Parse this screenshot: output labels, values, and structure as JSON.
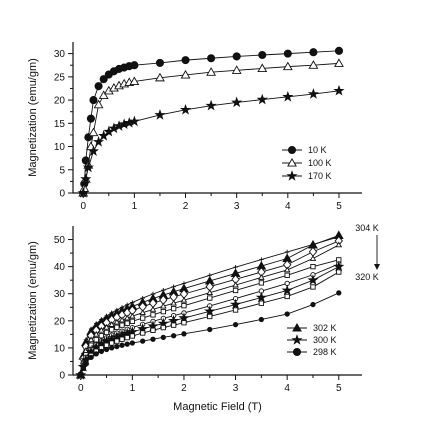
{
  "chart_data": [
    {
      "type": "line",
      "panel": "top",
      "title": "",
      "ylabel": "Magnetization (emu/gm)",
      "xlabel": "",
      "xlim": [
        -0.2,
        5.45
      ],
      "ylim": [
        0,
        32.5
      ],
      "xticks": [
        0,
        1,
        2,
        3,
        4,
        5
      ],
      "yticks": [
        0,
        5,
        10,
        15,
        20,
        25,
        30
      ],
      "legend_position": "bottom-right",
      "series": [
        {
          "name": "10 K",
          "marker": "circle-filled",
          "x": [
            0,
            0.02,
            0.05,
            0.1,
            0.15,
            0.2,
            0.3,
            0.4,
            0.5,
            0.6,
            0.7,
            0.8,
            0.9,
            1.0,
            1.5,
            2.0,
            2.5,
            3.0,
            3.5,
            4.0,
            4.5,
            5.0
          ],
          "y": [
            0,
            2,
            7,
            12,
            16,
            20,
            23,
            24.5,
            25.5,
            26.2,
            26.7,
            27,
            27.3,
            27.5,
            28,
            28.6,
            29,
            29.4,
            29.7,
            30,
            30.3,
            30.6
          ]
        },
        {
          "name": "100 K",
          "marker": "triangle-open",
          "x": [
            0,
            0.02,
            0.05,
            0.1,
            0.15,
            0.2,
            0.3,
            0.4,
            0.5,
            0.6,
            0.7,
            0.8,
            0.9,
            1.0,
            1.5,
            2.0,
            2.5,
            3.0,
            3.5,
            4.0,
            4.5,
            5.0
          ],
          "y": [
            0,
            1,
            3,
            6,
            10,
            13,
            19,
            21,
            22,
            22.6,
            23.1,
            23.5,
            23.8,
            24,
            24.8,
            25.4,
            26,
            26.4,
            26.8,
            27.2,
            27.5,
            27.9
          ]
        },
        {
          "name": "170 K",
          "marker": "star-filled",
          "x": [
            0,
            0.05,
            0.1,
            0.2,
            0.3,
            0.4,
            0.5,
            0.6,
            0.7,
            0.8,
            0.9,
            1.0,
            1.5,
            2.0,
            2.5,
            3.0,
            3.5,
            4.0,
            4.5,
            5.0
          ],
          "y": [
            0,
            3,
            5.5,
            9,
            11,
            12.3,
            13.2,
            13.9,
            14.4,
            14.8,
            15.1,
            15.4,
            16.8,
            17.9,
            18.8,
            19.5,
            20.1,
            20.7,
            21.3,
            22
          ]
        }
      ]
    },
    {
      "type": "line",
      "panel": "bottom",
      "title": "",
      "ylabel": "Magnetization (emu/gm)",
      "xlabel": "Magnetic Field (T)",
      "xlim": [
        -0.15,
        5.45
      ],
      "ylim": [
        0,
        55
      ],
      "xticks": [
        0,
        1,
        2,
        3,
        4,
        5
      ],
      "yticks": [
        0,
        10,
        20,
        30,
        40,
        50
      ],
      "legend_position": "bottom-right",
      "annotations": [
        "304 K",
        "320 K"
      ],
      "series": [
        {
          "name": "",
          "marker": "plus-small",
          "x": [
            0,
            0.05,
            0.1,
            0.2,
            0.3,
            0.4,
            0.5,
            0.6,
            0.7,
            0.8,
            0.9,
            1.0,
            1.2,
            1.4,
            1.6,
            1.8,
            2.0,
            2.5,
            3.0,
            3.5,
            4.0,
            4.5,
            5.0
          ],
          "y": [
            0,
            8,
            13,
            17,
            19,
            20.5,
            21.8,
            23,
            24,
            25,
            25.9,
            26.8,
            28.4,
            29.9,
            31.3,
            32.6,
            33.8,
            36.8,
            39.8,
            42.6,
            45.4,
            48.2,
            51
          ]
        },
        {
          "name": "302 K",
          "marker": "triangle-filled",
          "x": [
            0,
            0.05,
            0.1,
            0.2,
            0.3,
            0.4,
            0.5,
            0.6,
            0.7,
            0.8,
            0.9,
            1.0,
            1.2,
            1.4,
            1.6,
            1.8,
            2.0,
            2.5,
            3.0,
            3.5,
            4.0,
            4.5,
            5.0
          ],
          "y": [
            0,
            7,
            12,
            16,
            18,
            19.5,
            20.8,
            21.9,
            22.8,
            23.7,
            24.5,
            25.3,
            26.8,
            28.2,
            29.5,
            30.7,
            31.9,
            34.7,
            37.5,
            40.2,
            43,
            48,
            51.5
          ]
        },
        {
          "name": "",
          "marker": "diamond-open",
          "x": [
            0,
            0.05,
            0.1,
            0.2,
            0.3,
            0.4,
            0.5,
            0.6,
            0.7,
            0.8,
            0.9,
            1.0,
            1.2,
            1.4,
            1.6,
            1.8,
            2.0,
            2.5,
            3.0,
            3.5,
            4.0,
            4.5,
            5.0
          ],
          "y": [
            0,
            6,
            10.5,
            14.5,
            16.5,
            18,
            19.3,
            20.4,
            21.3,
            22.2,
            23,
            23.8,
            25.2,
            26.5,
            27.7,
            28.8,
            29.9,
            32.6,
            35.3,
            38,
            40.7,
            45.5,
            49.5
          ]
        },
        {
          "name": "",
          "marker": "triangle-open-small",
          "x": [
            0,
            0.05,
            0.1,
            0.2,
            0.3,
            0.4,
            0.5,
            0.6,
            0.7,
            0.8,
            0.9,
            1.0,
            1.2,
            1.4,
            1.6,
            1.8,
            2.0,
            2.5,
            3.0,
            3.5,
            4.0,
            4.5,
            5.0
          ],
          "y": [
            0,
            5,
            9,
            13,
            15,
            16.5,
            17.6,
            18.6,
            19.5,
            20.3,
            21,
            21.7,
            23,
            24.2,
            25.4,
            26.5,
            27.6,
            30.4,
            33.2,
            36,
            38.8,
            43,
            48
          ]
        },
        {
          "name": "",
          "marker": "square-open-small",
          "x": [
            0,
            0.05,
            0.1,
            0.2,
            0.3,
            0.4,
            0.5,
            0.6,
            0.7,
            0.8,
            0.9,
            1.0,
            1.2,
            1.4,
            1.6,
            1.8,
            2.0,
            2.5,
            3.0,
            3.5,
            4.0,
            4.5,
            5.0
          ],
          "y": [
            0,
            4,
            7.5,
            11,
            13,
            14.5,
            15.7,
            16.7,
            17.6,
            18.4,
            19.1,
            19.8,
            21,
            22.2,
            23.4,
            24.5,
            25.6,
            28.4,
            31.2,
            34,
            36.8,
            40,
            42.5
          ]
        },
        {
          "name": "",
          "marker": "circle-open-small",
          "x": [
            0,
            0.05,
            0.1,
            0.2,
            0.3,
            0.4,
            0.5,
            0.6,
            0.7,
            0.8,
            0.9,
            1.0,
            1.2,
            1.4,
            1.6,
            1.8,
            2.0,
            2.5,
            3.0,
            3.5,
            4.0,
            4.5,
            5.0
          ],
          "y": [
            0,
            3.5,
            6.5,
            9.5,
            11.3,
            12.6,
            13.7,
            14.7,
            15.5,
            16.2,
            16.9,
            17.5,
            18.7,
            19.8,
            20.9,
            21.9,
            22.9,
            25.5,
            28.2,
            31,
            33.8,
            37,
            41
          ]
        },
        {
          "name": "300 K",
          "marker": "star-filled",
          "x": [
            0,
            0.05,
            0.1,
            0.2,
            0.3,
            0.4,
            0.5,
            0.6,
            0.7,
            0.8,
            0.9,
            1.0,
            1.2,
            1.4,
            1.6,
            1.8,
            2.0,
            2.5,
            3.0,
            3.5,
            4.0,
            4.5,
            5.0
          ],
          "y": [
            0,
            3,
            5.5,
            8.5,
            10.2,
            11.4,
            12.4,
            13.2,
            14,
            14.7,
            15.3,
            15.9,
            17,
            18,
            19,
            20,
            21,
            23.5,
            26,
            28.6,
            31.2,
            35,
            40
          ]
        },
        {
          "name": "",
          "marker": "square-open-small",
          "x": [
            0,
            0.05,
            0.1,
            0.2,
            0.3,
            0.4,
            0.5,
            0.6,
            0.7,
            0.8,
            0.9,
            1.0,
            1.2,
            1.4,
            1.6,
            1.8,
            2.0,
            2.5,
            3.0,
            3.5,
            4.0,
            4.5,
            5.0
          ],
          "y": [
            0,
            2.5,
            4.5,
            7.2,
            8.8,
            10,
            11,
            11.8,
            12.5,
            13.2,
            13.8,
            14.4,
            15.5,
            16.5,
            17.5,
            18.4,
            19.3,
            21.6,
            24,
            26.5,
            29,
            32.5,
            38
          ]
        },
        {
          "name": "298 K",
          "marker": "circle-filled-small",
          "x": [
            0,
            0.05,
            0.1,
            0.2,
            0.3,
            0.4,
            0.5,
            0.6,
            0.7,
            0.8,
            0.9,
            1.0,
            1.2,
            1.4,
            1.6,
            1.8,
            2.0,
            2.5,
            3.0,
            3.5,
            4.0,
            4.5,
            5.0
          ],
          "y": [
            0,
            2.5,
            4.5,
            6.5,
            7.8,
            8.7,
            9.4,
            10,
            10.5,
            11,
            11.4,
            11.8,
            12.5,
            13.2,
            13.9,
            14.5,
            15.2,
            16.8,
            18.6,
            20.5,
            22.5,
            26,
            30.3
          ]
        }
      ]
    }
  ]
}
